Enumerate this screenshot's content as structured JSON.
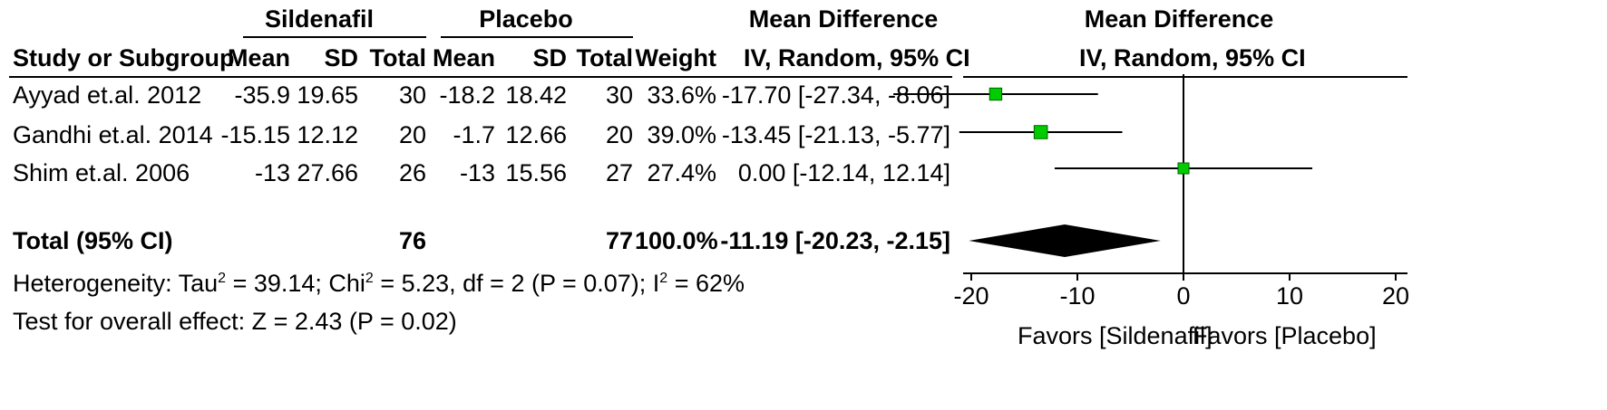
{
  "headers": {
    "group1": "Sildenafil",
    "group2": "Placebo",
    "md_title": "Mean Difference",
    "md_sub": "IV, Random, 95% CI",
    "plot_title": "Mean Difference",
    "plot_sub": "IV, Random, 95% CI",
    "study": "Study or Subgroup",
    "mean": "Mean",
    "sd": "SD",
    "total": "Total",
    "weight": "Weight"
  },
  "studies": [
    {
      "name": "Ayyad et.al. 2012",
      "mean1": "-35.9",
      "sd1": "19.65",
      "total1": "30",
      "mean2": "-18.2",
      "sd2": "18.42",
      "total2": "30",
      "weight": "33.6%",
      "ci_text": "-17.70 [-27.34, -8.06]"
    },
    {
      "name": "Gandhi et.al. 2014",
      "mean1": "-15.15",
      "sd1": "12.12",
      "total1": "20",
      "mean2": "-1.7",
      "sd2": "12.66",
      "total2": "20",
      "weight": "39.0%",
      "ci_text": "-13.45 [-21.13, -5.77]"
    },
    {
      "name": "Shim et.al. 2006",
      "mean1": "-13",
      "sd1": "27.66",
      "total1": "26",
      "mean2": "-13",
      "sd2": "15.56",
      "total2": "27",
      "weight": "27.4%",
      "ci_text": "0.00 [-12.14, 12.14]"
    }
  ],
  "total_row": {
    "label": "Total (95% CI)",
    "total1": "76",
    "total2": "77",
    "weight": "100.0%",
    "ci_text": "-11.19 [-20.23, -2.15]"
  },
  "heterogeneity": {
    "prefix": "Heterogeneity: Tau",
    "sup1": "2",
    "mid1": " = 39.14; Chi",
    "sup2": "2",
    "mid2": " = 5.23, df = 2 (P = 0.07); I",
    "sup3": "2",
    "suffix": " = 62%"
  },
  "overall_effect": "Test for overall effect: Z = 2.43 (P = 0.02)",
  "favors_left": "Favors [Sildenafil]",
  "favors_right": "Favors [Placebo]",
  "colors": {
    "marker": "#00cc00",
    "diamond": "#000000"
  },
  "chart_data": {
    "type": "scatter",
    "title": "Mean Difference",
    "subtitle": "IV, Random, 95% CI",
    "xlim": [
      -30,
      30
    ],
    "xticks": [
      -20,
      -10,
      0,
      10,
      20
    ],
    "grid": false,
    "series": [
      {
        "points": [
          {
            "study": "Ayyad et.al. 2012",
            "estimate": -17.7,
            "lower": -27.34,
            "upper": -8.06,
            "weight": 33.6
          },
          {
            "study": "Gandhi et.al. 2014",
            "estimate": -13.45,
            "lower": -21.13,
            "upper": -5.77,
            "weight": 39.0
          },
          {
            "study": "Shim et.al. 2006",
            "estimate": 0.0,
            "lower": -12.14,
            "upper": 12.14,
            "weight": 27.4
          }
        ]
      }
    ],
    "pooled": {
      "estimate": -11.19,
      "lower": -20.23,
      "upper": -2.15
    }
  }
}
